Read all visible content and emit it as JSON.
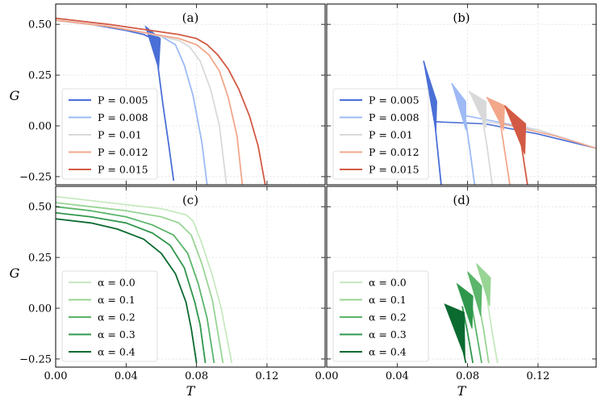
{
  "figure": {
    "x_label": "T",
    "y_label": "G",
    "x_ticks": [
      "0.00",
      "0.04",
      "0.08",
      "0.12"
    ],
    "y_ticks": [
      "0.50",
      "0.25",
      "0.00",
      "−0.25"
    ]
  },
  "chart_data": [
    {
      "panel": "(a)",
      "type": "line",
      "xlabel": "",
      "ylabel": "G",
      "xlim": [
        0,
        0.153
      ],
      "ylim": [
        -0.29,
        0.6
      ],
      "legend_position": "bottom-left",
      "series": [
        {
          "name": "P = 0.005",
          "color": "#4a6fd6",
          "points": [
            [
              0,
              0.52
            ],
            [
              0.02,
              0.5
            ],
            [
              0.04,
              0.47
            ],
            [
              0.05,
              0.45
            ],
            [
              0.055,
              0.43
            ],
            [
              0.058,
              0.3
            ],
            [
              0.061,
              0.1
            ],
            [
              0.064,
              -0.08
            ],
            [
              0.067,
              -0.27
            ]
          ],
          "swallowtail": [
            [
              0.051,
              0.49
            ],
            [
              0.0595,
              0.43
            ],
            [
              0.0585,
              0.28
            ]
          ]
        },
        {
          "name": "P = 0.008",
          "color": "#9dbaf5",
          "points": [
            [
              0,
              0.52
            ],
            [
              0.03,
              0.49
            ],
            [
              0.05,
              0.46
            ],
            [
              0.06,
              0.44
            ],
            [
              0.068,
              0.4
            ],
            [
              0.073,
              0.3
            ],
            [
              0.078,
              0.15
            ],
            [
              0.083,
              -0.08
            ],
            [
              0.086,
              -0.29
            ]
          ]
        },
        {
          "name": "P = 0.01",
          "color": "#d9d9d9",
          "points": [
            [
              0,
              0.52
            ],
            [
              0.03,
              0.49
            ],
            [
              0.05,
              0.46
            ],
            [
              0.06,
              0.44
            ],
            [
              0.07,
              0.42
            ],
            [
              0.076,
              0.39
            ],
            [
              0.082,
              0.32
            ],
            [
              0.088,
              0.18
            ],
            [
              0.093,
              0.0
            ],
            [
              0.097,
              -0.29
            ]
          ]
        },
        {
          "name": "P = 0.012",
          "color": "#f2a78b",
          "points": [
            [
              0,
              0.52
            ],
            [
              0.03,
              0.49
            ],
            [
              0.05,
              0.46
            ],
            [
              0.06,
              0.445
            ],
            [
              0.07,
              0.43
            ],
            [
              0.08,
              0.4
            ],
            [
              0.087,
              0.35
            ],
            [
              0.093,
              0.27
            ],
            [
              0.098,
              0.14
            ],
            [
              0.103,
              -0.05
            ],
            [
              0.106,
              -0.29
            ]
          ]
        },
        {
          "name": "P = 0.015",
          "color": "#d25a44",
          "points": [
            [
              0,
              0.53
            ],
            [
              0.03,
              0.5
            ],
            [
              0.05,
              0.475
            ],
            [
              0.07,
              0.45
            ],
            [
              0.08,
              0.43
            ],
            [
              0.086,
              0.4
            ],
            [
              0.092,
              0.35
            ],
            [
              0.098,
              0.28
            ],
            [
              0.104,
              0.18
            ],
            [
              0.11,
              0.05
            ],
            [
              0.115,
              -0.1
            ],
            [
              0.119,
              -0.29
            ]
          ]
        }
      ]
    },
    {
      "panel": "(b)",
      "type": "line",
      "xlim": [
        0,
        0.153
      ],
      "ylim": [
        -0.29,
        0.6
      ],
      "legend_position": "bottom-left",
      "series": [
        {
          "name": "P = 0.005",
          "color": "#4a6fd6",
          "points": [
            [
              0.055,
              0.32
            ],
            [
              0.06,
              0.15
            ],
            [
              0.061,
              0.05
            ],
            [
              0.063,
              -0.12
            ],
            [
              0.065,
              -0.29
            ]
          ],
          "swallowtail": [
            [
              0.055,
              0.32
            ],
            [
              0.0625,
              0.12
            ],
            [
              0.062,
              -0.03
            ]
          ],
          "branch": [
            [
              0.062,
              0.02
            ],
            [
              0.09,
              0.01
            ],
            [
              0.12,
              -0.04
            ],
            [
              0.153,
              -0.11
            ]
          ]
        },
        {
          "name": "P = 0.008",
          "color": "#9dbaf5",
          "points": [
            [
              0.071,
              0.21
            ],
            [
              0.078,
              0.08
            ],
            [
              0.081,
              -0.1
            ],
            [
              0.084,
              -0.29
            ]
          ],
          "swallowtail": [
            [
              0.071,
              0.21
            ],
            [
              0.079,
              0.12
            ],
            [
              0.079,
              -0.02
            ]
          ],
          "branch": [
            [
              0.079,
              0.05
            ],
            [
              0.12,
              -0.02
            ],
            [
              0.153,
              -0.11
            ]
          ]
        },
        {
          "name": "P = 0.01",
          "color": "#d9d9d9",
          "points": [
            [
              0.081,
              0.17
            ],
            [
              0.088,
              0.06
            ],
            [
              0.091,
              -0.1
            ],
            [
              0.094,
              -0.29
            ]
          ],
          "swallowtail": [
            [
              0.081,
              0.17
            ],
            [
              0.0905,
              0.12
            ],
            [
              0.0905,
              -0.01
            ]
          ],
          "branch": [
            [
              0.09,
              0.02
            ],
            [
              0.12,
              -0.02
            ],
            [
              0.153,
              -0.11
            ]
          ]
        },
        {
          "name": "P = 0.012",
          "color": "#f2a78b",
          "points": [
            [
              0.091,
              0.14
            ],
            [
              0.098,
              0.05
            ],
            [
              0.101,
              -0.12
            ],
            [
              0.104,
              -0.29
            ]
          ],
          "swallowtail": [
            [
              0.091,
              0.14
            ],
            [
              0.101,
              0.1
            ],
            [
              0.1005,
              -0.02
            ]
          ],
          "branch": [
            [
              0.1,
              0.01
            ],
            [
              0.13,
              -0.05
            ],
            [
              0.153,
              -0.11
            ]
          ]
        },
        {
          "name": "P = 0.015",
          "color": "#d25a44",
          "points": [
            [
              0.101,
              0.1
            ],
            [
              0.108,
              0.04
            ],
            [
              0.111,
              -0.12
            ],
            [
              0.114,
              -0.29
            ]
          ],
          "swallowtail": [
            [
              0.101,
              0.1
            ],
            [
              0.113,
              0.01
            ],
            [
              0.1125,
              -0.14
            ]
          ]
        }
      ]
    },
    {
      "panel": "(c)",
      "type": "line",
      "xlabel": "T",
      "ylabel": "G",
      "xlim": [
        0,
        0.153
      ],
      "ylim": [
        -0.29,
        0.6
      ],
      "legend_position": "bottom-left",
      "series": [
        {
          "name": "α = 0.0",
          "color": "#c7e9c0",
          "points": [
            [
              0,
              0.55
            ],
            [
              0.02,
              0.53
            ],
            [
              0.04,
              0.51
            ],
            [
              0.06,
              0.49
            ],
            [
              0.074,
              0.46
            ],
            [
              0.078,
              0.43
            ],
            [
              0.083,
              0.32
            ],
            [
              0.089,
              0.16
            ],
            [
              0.094,
              0.0
            ],
            [
              0.1,
              -0.27
            ]
          ]
        },
        {
          "name": "α = 0.1",
          "color": "#98d594",
          "points": [
            [
              0,
              0.52
            ],
            [
              0.02,
              0.5
            ],
            [
              0.04,
              0.48
            ],
            [
              0.06,
              0.45
            ],
            [
              0.07,
              0.42
            ],
            [
              0.077,
              0.36
            ],
            [
              0.083,
              0.22
            ],
            [
              0.089,
              0.04
            ],
            [
              0.095,
              -0.27
            ]
          ]
        },
        {
          "name": "α = 0.2",
          "color": "#5bb56a",
          "points": [
            [
              0,
              0.5
            ],
            [
              0.02,
              0.48
            ],
            [
              0.04,
              0.45
            ],
            [
              0.055,
              0.41
            ],
            [
              0.067,
              0.36
            ],
            [
              0.075,
              0.27
            ],
            [
              0.081,
              0.12
            ],
            [
              0.086,
              -0.05
            ],
            [
              0.09,
              -0.27
            ]
          ]
        },
        {
          "name": "α = 0.3",
          "color": "#2f974c",
          "points": [
            [
              0,
              0.47
            ],
            [
              0.02,
              0.45
            ],
            [
              0.04,
              0.42
            ],
            [
              0.055,
              0.37
            ],
            [
              0.065,
              0.31
            ],
            [
              0.073,
              0.2
            ],
            [
              0.079,
              0.03
            ],
            [
              0.082,
              -0.08
            ],
            [
              0.085,
              -0.27
            ]
          ]
        },
        {
          "name": "α = 0.4",
          "color": "#0b6a30",
          "points": [
            [
              0,
              0.44
            ],
            [
              0.02,
              0.42
            ],
            [
              0.035,
              0.39
            ],
            [
              0.05,
              0.34
            ],
            [
              0.06,
              0.27
            ],
            [
              0.068,
              0.17
            ],
            [
              0.074,
              0.03
            ],
            [
              0.077,
              -0.1
            ],
            [
              0.08,
              -0.27
            ]
          ]
        }
      ]
    },
    {
      "panel": "(d)",
      "type": "line",
      "xlabel": "T",
      "xlim": [
        0,
        0.153
      ],
      "ylim": [
        -0.29,
        0.6
      ],
      "legend_position": "bottom-left",
      "series": [
        {
          "name": "α = 0.0",
          "color": "#c7e9c0",
          "points": [
            [
              0.091,
              0.05
            ],
            [
              0.094,
              -0.12
            ],
            [
              0.097,
              -0.27
            ]
          ]
        },
        {
          "name": "α = 0.1",
          "color": "#98d594",
          "points": [
            [
              0.086,
              0.04
            ],
            [
              0.089,
              -0.1
            ],
            [
              0.092,
              -0.27
            ]
          ],
          "swallowtail": [
            [
              0.085,
              0.22
            ],
            [
              0.093,
              0.15
            ],
            [
              0.0925,
              0.01
            ]
          ]
        },
        {
          "name": "α = 0.2",
          "color": "#5bb56a",
          "points": [
            [
              0.082,
              0.03
            ],
            [
              0.085,
              -0.12
            ],
            [
              0.088,
              -0.27
            ]
          ],
          "swallowtail": [
            [
              0.08,
              0.18
            ],
            [
              0.088,
              0.11
            ],
            [
              0.0875,
              -0.04
            ]
          ]
        },
        {
          "name": "α = 0.3",
          "color": "#2f974c",
          "points": [
            [
              0.077,
              0.01
            ],
            [
              0.08,
              -0.12
            ],
            [
              0.083,
              -0.27
            ]
          ],
          "swallowtail": [
            [
              0.074,
              0.12
            ],
            [
              0.083,
              0.06
            ],
            [
              0.0825,
              -0.1
            ]
          ]
        },
        {
          "name": "α = 0.4",
          "color": "#0b6a30",
          "points": [
            [
              0.073,
              -0.02
            ],
            [
              0.076,
              -0.15
            ],
            [
              0.079,
              -0.27
            ]
          ],
          "swallowtail": [
            [
              0.067,
              0.02
            ],
            [
              0.078,
              -0.02
            ],
            [
              0.0785,
              -0.24
            ]
          ]
        }
      ]
    }
  ]
}
